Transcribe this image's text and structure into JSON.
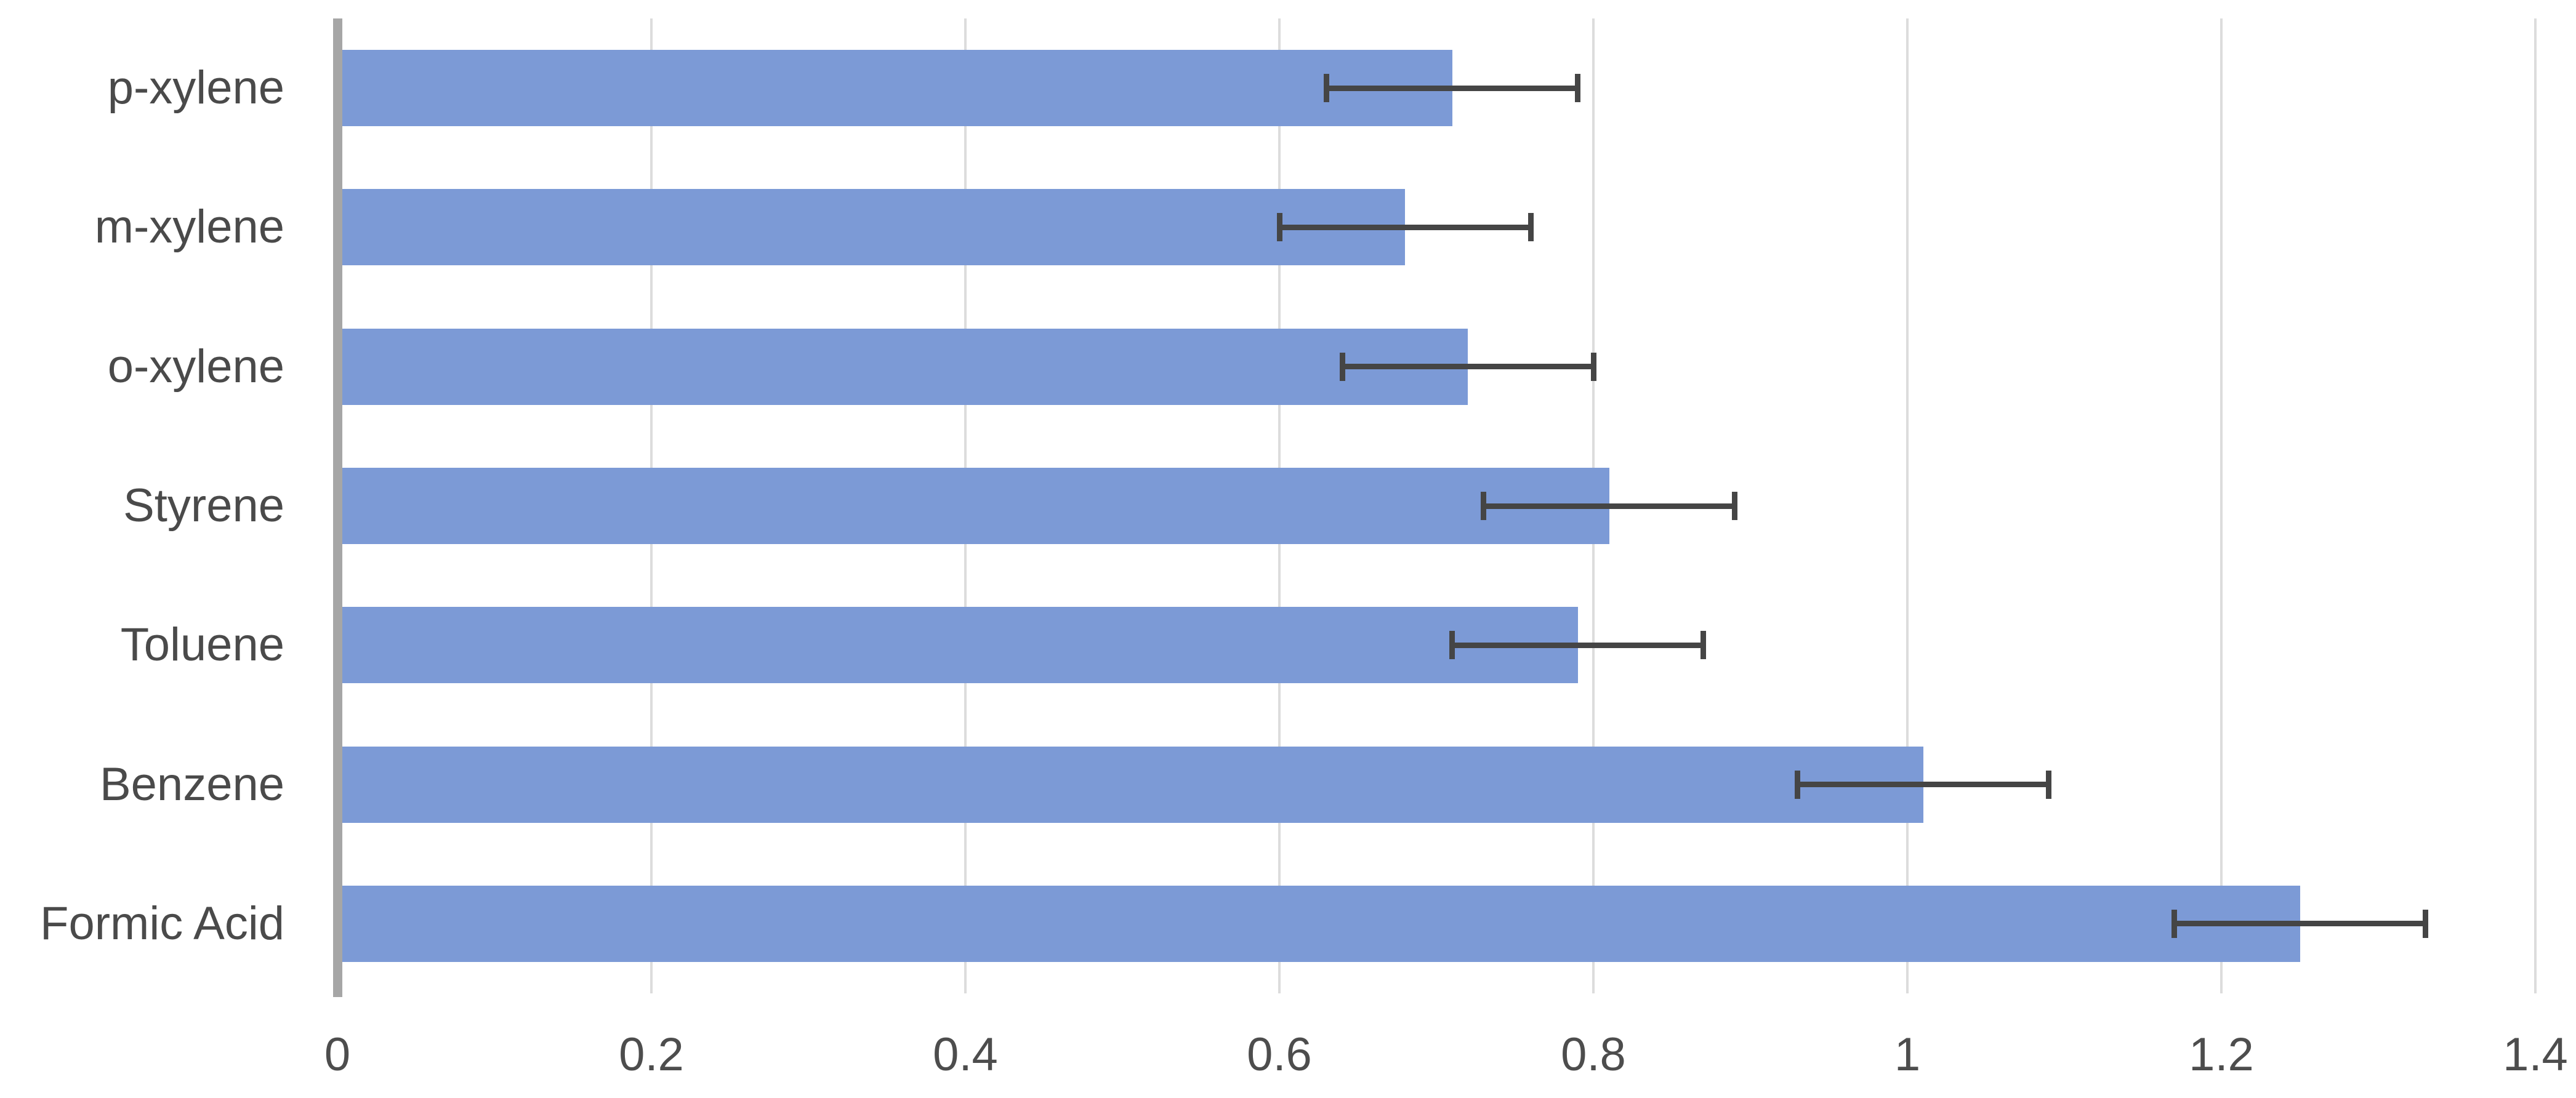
{
  "chart_data": {
    "type": "bar",
    "orientation": "horizontal",
    "categories": [
      "p-xylene",
      "m-xylene",
      "o-xylene",
      "Styrene",
      "Toluene",
      "Benzene",
      "Formic Acid"
    ],
    "values": [
      0.71,
      0.68,
      0.72,
      0.81,
      0.79,
      1.01,
      1.25
    ],
    "error_x": [
      0.08,
      0.08,
      0.08,
      0.08,
      0.08,
      0.08,
      0.08
    ],
    "x_ticks": [
      0,
      0.2,
      0.4,
      0.6,
      0.8,
      1,
      1.2,
      1.4
    ],
    "x_tick_labels": [
      "0",
      "0.2",
      "0.4",
      "0.6",
      "0.8",
      "1",
      "1.2",
      "1.4"
    ],
    "xlim": [
      0,
      1.4
    ],
    "grid": true,
    "legend": "none",
    "bar_color": "#7C9AD6",
    "error_bar_color": "#454545",
    "gridline_color": "#DCDCDC",
    "axis_line_color": "#A6A6A6",
    "tick_label_color": "#4d4d4d",
    "category_label_color": "#4a4a4a"
  }
}
